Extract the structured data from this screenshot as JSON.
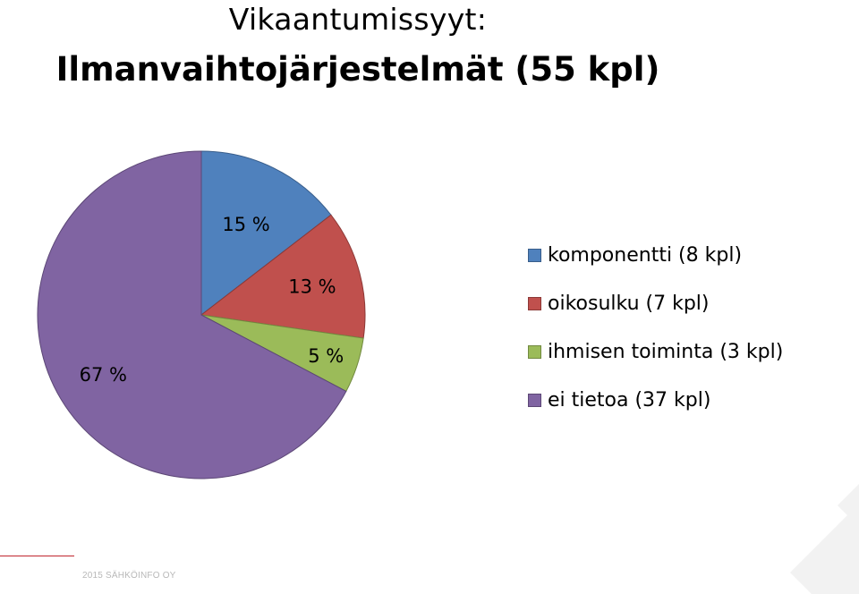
{
  "title": {
    "line1": "Vikaantumissyyt:",
    "line2": "Ilmanvaihtojärjestelmät (55 kpl)"
  },
  "chart_data": {
    "type": "pie",
    "title": "Ilmanvaihtojärjestelmät (55 kpl)",
    "slices": [
      {
        "name": "komponentti (8 kpl)",
        "count": 8,
        "label": "15 %",
        "value": 15,
        "color": "#4f81bd",
        "edge": "#385d8a"
      },
      {
        "name": "oikosulku (7 kpl)",
        "count": 7,
        "label": "13 %",
        "value": 13,
        "color": "#c0504d",
        "edge": "#8c3836"
      },
      {
        "name": "ihmisen toiminta (3 kpl)",
        "count": 3,
        "label": "5 %",
        "value": 5,
        "color": "#9bbb59",
        "edge": "#71893f"
      },
      {
        "name": "ei tietoa (37 kpl)",
        "count": 37,
        "label": "67 %",
        "value": 67,
        "color": "#8064a2",
        "edge": "#5c4776"
      }
    ],
    "legend_position": "right"
  },
  "footer": {
    "text": "2015 SÄHKÖINFO OY",
    "accent_color": "#c0262d"
  }
}
